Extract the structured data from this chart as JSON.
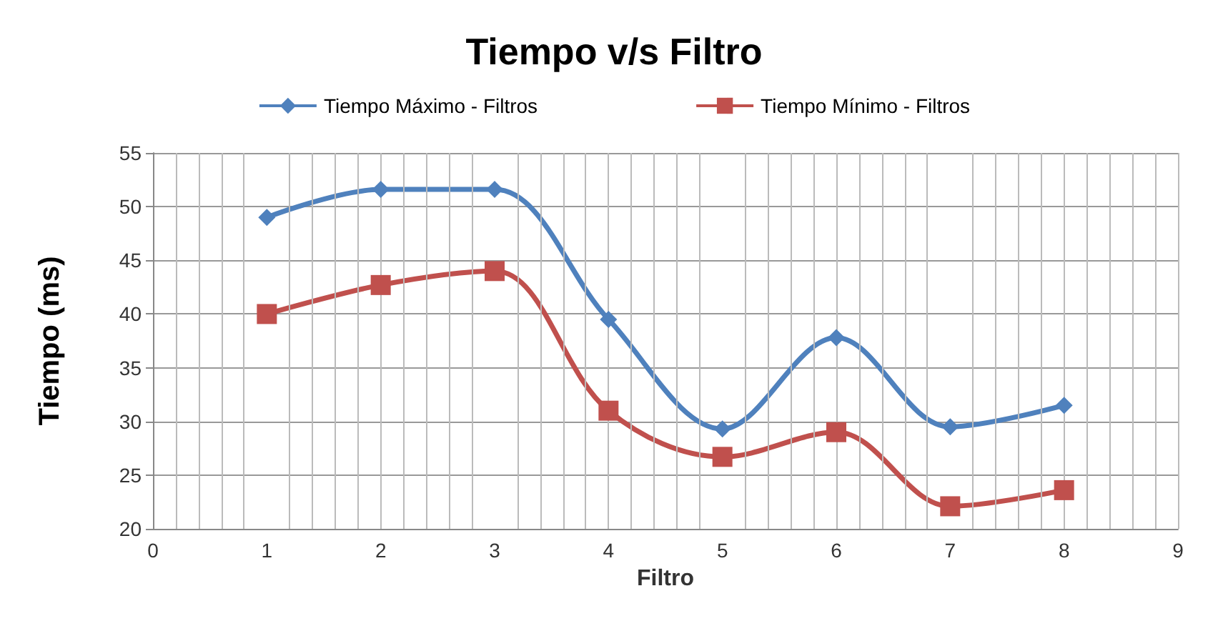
{
  "chart_data": {
    "type": "line",
    "title": "Tiempo v/s Filtro",
    "xlabel": "Filtro",
    "ylabel": "Tiempo (ms)",
    "x": [
      1,
      2,
      3,
      4,
      5,
      6,
      7,
      8
    ],
    "series": [
      {
        "name": "Tiempo Máximo - Filtros",
        "color": "#4f81bd",
        "marker": "diamond",
        "values": [
          49,
          51.6,
          51.6,
          39.5,
          29.3,
          37.8,
          29.5,
          31.5
        ]
      },
      {
        "name": "Tiempo Mínimo - Filtros",
        "color": "#c0504d",
        "marker": "square",
        "values": [
          40,
          42.7,
          44,
          31,
          26.7,
          29,
          22.1,
          23.6
        ]
      }
    ],
    "xlim": [
      0,
      9
    ],
    "xticks": [
      0,
      1,
      2,
      3,
      4,
      5,
      6,
      7,
      8,
      9
    ],
    "ylim": [
      20,
      55
    ],
    "yticks": [
      20,
      25,
      30,
      35,
      40,
      45,
      50,
      55
    ],
    "grid": true,
    "legend": "top"
  }
}
